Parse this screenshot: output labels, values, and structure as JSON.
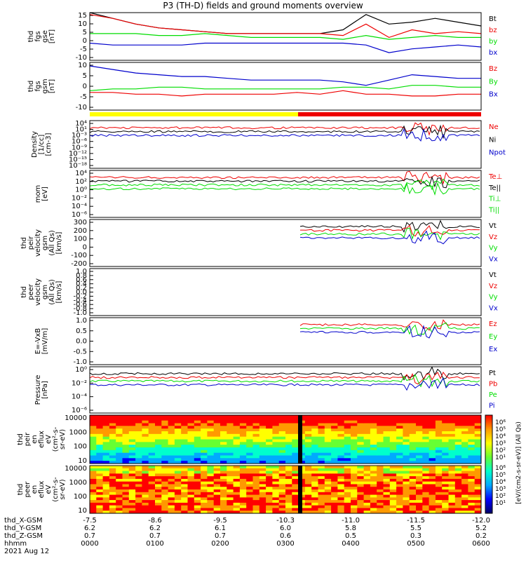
{
  "title": "P3 (TH-D) fields and ground moments overview",
  "colors": {
    "black": "#000000",
    "red": "#ee0000",
    "green": "#00dd00",
    "blue": "#0000cc",
    "yellow": "#ffff00",
    "purple": "#7700cc"
  },
  "chart_data": [
    {
      "type": "line",
      "id": "fgs_gse",
      "ylabel": [
        "thd",
        "fgs",
        "gse",
        "[nT]"
      ],
      "ylim": [
        -10,
        15
      ],
      "ticks": [
        "15",
        "10",
        "5",
        "0",
        "-5",
        "-10"
      ],
      "series": [
        {
          "name": "Bt",
          "color": "black",
          "values": [
            15,
            12,
            9,
            7,
            6,
            5,
            4,
            4,
            4,
            4,
            4,
            6,
            14,
            9,
            10,
            12,
            10,
            8
          ]
        },
        {
          "name": "bz",
          "color": "red",
          "values": [
            14,
            12,
            9,
            7,
            6,
            5,
            4,
            4,
            4,
            4,
            4,
            3,
            9,
            2,
            6,
            4,
            5,
            4
          ]
        },
        {
          "name": "by",
          "color": "green",
          "values": [
            4,
            4,
            4,
            3,
            3,
            4,
            3,
            2,
            2,
            2,
            2,
            1,
            3,
            1,
            2,
            3,
            2,
            2
          ]
        },
        {
          "name": "bx",
          "color": "blue",
          "values": [
            -1,
            -2,
            -2,
            -2,
            -2,
            -1,
            -1,
            -1,
            -1,
            -1,
            -1,
            -1,
            -2,
            -6,
            -4,
            -3,
            -2,
            -3
          ]
        }
      ]
    },
    {
      "type": "line",
      "id": "fgs_gsm",
      "ylabel": [
        "thd",
        "fgs",
        "gsm",
        "[nT]"
      ],
      "ylim": [
        -12,
        15
      ],
      "ticks": [
        "10",
        "5",
        "0",
        "-5",
        "-10"
      ],
      "series": [
        {
          "name": "Bz",
          "color": "red",
          "values": [
            -2,
            -2,
            -3,
            -3,
            -4,
            -3,
            -3,
            -3,
            -3,
            -2,
            -3,
            -1,
            -3,
            -3,
            -4,
            -4,
            -3,
            -3
          ]
        },
        {
          "name": "By",
          "color": "green",
          "values": [
            -1,
            0,
            0,
            1,
            1,
            0,
            0,
            0,
            0,
            0,
            0,
            1,
            1,
            0,
            2,
            2,
            1,
            1
          ]
        },
        {
          "name": "Bx",
          "color": "blue",
          "values": [
            13,
            11,
            9,
            8,
            7,
            7,
            6,
            5,
            5,
            5,
            5,
            4,
            2,
            5,
            8,
            7,
            6,
            6
          ]
        }
      ]
    },
    {
      "type": "line",
      "id": "density",
      "ylabel": [
        "Density",
        "[1/cc]",
        "[cm-3]"
      ],
      "ticks": [
        "10⁴",
        "10¹",
        "10⁻³",
        "10⁻⁶",
        "10⁻⁹",
        "10⁻¹²",
        "10⁻¹⁵",
        "10⁻¹⁸"
      ],
      "series": [
        {
          "name": "Ne",
          "color": "red"
        },
        {
          "name": "Ni",
          "color": "black"
        },
        {
          "name": "Npot",
          "color": "blue"
        }
      ]
    },
    {
      "type": "line",
      "id": "temperature",
      "ylabel": [
        "mom",
        "[eV]"
      ],
      "ticks": [
        "10⁴",
        "10²",
        "10⁰",
        "10⁻²",
        "10⁻⁴",
        "10⁻⁶"
      ],
      "series": [
        {
          "name": "Te⊥",
          "color": "red"
        },
        {
          "name": "Te||",
          "color": "black"
        },
        {
          "name": "Ti⊥",
          "color": "green"
        },
        {
          "name": "Ti||",
          "color": "green"
        }
      ]
    },
    {
      "type": "line",
      "id": "peir_velocity",
      "ylabel": [
        "thd",
        "peir",
        "velocity",
        "gsm",
        "(All Qs)",
        "[km/s]"
      ],
      "ylim": [
        -200,
        300
      ],
      "ticks": [
        "300",
        "200",
        "100",
        "0",
        "-100",
        "-200"
      ],
      "series": [
        {
          "name": "Vt",
          "color": "black"
        },
        {
          "name": "Vz",
          "color": "red"
        },
        {
          "name": "Vy",
          "color": "green"
        },
        {
          "name": "Vx",
          "color": "blue"
        }
      ]
    },
    {
      "type": "line",
      "id": "peer_velocity",
      "ylabel": [
        "thd",
        "peer",
        "velocity",
        "gsm",
        "(All Qs)",
        "[km/s]"
      ],
      "ylim": [
        -1,
        1
      ],
      "ticks": [
        "1.0",
        "0.8",
        "0.6",
        "0.4",
        "0.2",
        "0.0",
        "-0.2",
        "-0.4",
        "-0.6",
        "-0.8",
        "-1.0"
      ],
      "series": [
        {
          "name": "Vt",
          "color": "black"
        },
        {
          "name": "Vz",
          "color": "red"
        },
        {
          "name": "Vy",
          "color": "green"
        },
        {
          "name": "Vx",
          "color": "blue"
        }
      ]
    },
    {
      "type": "line",
      "id": "efield",
      "ylabel": [
        "E=-VxB",
        "[mV/m]"
      ],
      "ylim": [
        -1,
        1
      ],
      "ticks": [
        "1.0",
        "0.5",
        "0.0",
        "-0.5",
        "-1.0"
      ],
      "series": [
        {
          "name": "Ez",
          "color": "red"
        },
        {
          "name": "Ey",
          "color": "green"
        },
        {
          "name": "Ex",
          "color": "blue"
        }
      ]
    },
    {
      "type": "line",
      "id": "pressure",
      "ylabel": [
        "Pressure",
        "[nPa]"
      ],
      "ticks": [
        "10⁰",
        "10⁻²",
        "10⁻⁴",
        "10⁻⁶"
      ],
      "series": [
        {
          "name": "Pt",
          "color": "black"
        },
        {
          "name": "Pb",
          "color": "red"
        },
        {
          "name": "Pe",
          "color": "green"
        },
        {
          "name": "Pi",
          "color": "blue"
        }
      ]
    },
    {
      "type": "heatmap",
      "id": "peir_spec",
      "ylabel": [
        "thd",
        "peir",
        "en",
        "eflux",
        "eV",
        "(cm²-s-",
        "sr-eV)"
      ],
      "ticks": [
        "10000",
        "1000",
        "100",
        "10"
      ]
    },
    {
      "type": "heatmap",
      "id": "peer_spec",
      "ylabel": [
        "thd",
        "peer",
        "en",
        "eflux",
        "eV",
        "(cm²-s-",
        "sr-eV)"
      ],
      "ticks": [
        "10000",
        "1000",
        "100",
        "10"
      ]
    }
  ],
  "colorbar": {
    "label": "[eV/(cm2-s-sr-eV)] (All Qs)",
    "ticks": [
      "10⁶",
      "10⁵",
      "10⁴",
      "10³",
      "10²",
      "10¹"
    ],
    "ticks2": [
      "10⁶",
      "10⁵",
      "10⁴",
      "10³",
      "10²",
      "10¹"
    ]
  },
  "xaxis": {
    "row_labels": [
      "thd_X-GSM",
      "thd_Y-GSM",
      "thd_Z-GSM",
      "hhmm",
      "2021 Aug 12"
    ],
    "rows": [
      [
        "-7.5",
        "-8.6",
        "-9.5",
        "-10.3",
        "-11.0",
        "-11.5",
        "-12.0"
      ],
      [
        "6.2",
        "6.2",
        "6.1",
        "6.0",
        "5.8",
        "5.5",
        "5.2"
      ],
      [
        "0.7",
        "0.7",
        "0.7",
        "0.6",
        "0.5",
        "0.3",
        "0.2"
      ],
      [
        "0000",
        "0100",
        "0200",
        "0300",
        "0400",
        "0500",
        "0600"
      ]
    ]
  }
}
